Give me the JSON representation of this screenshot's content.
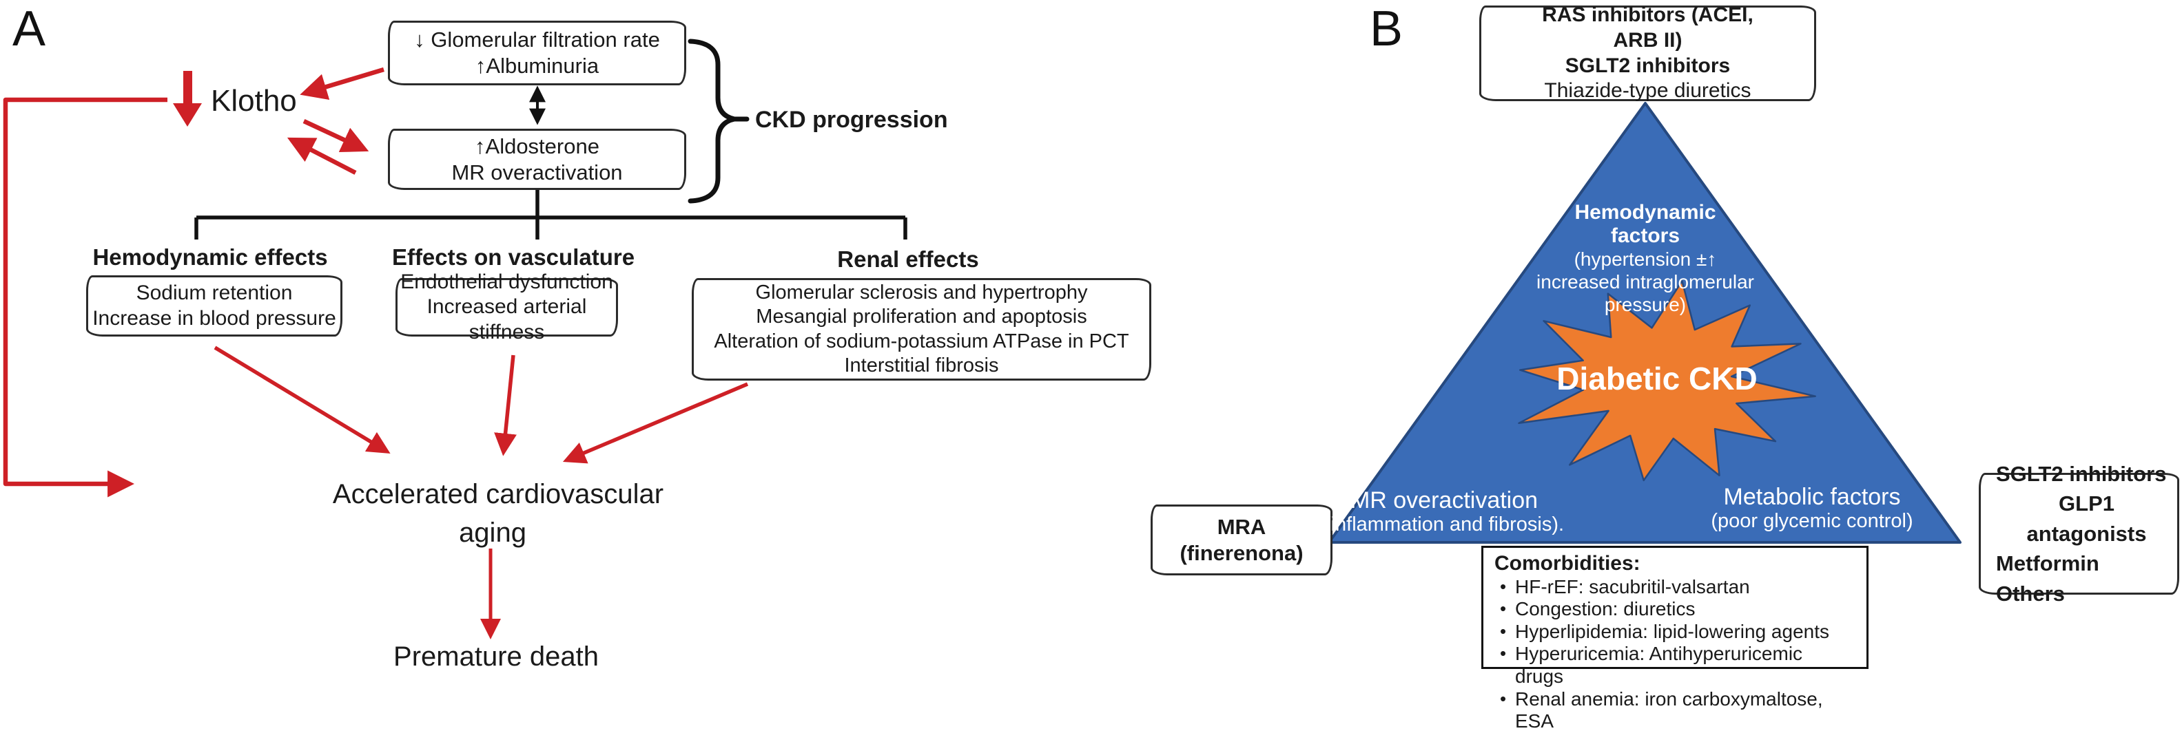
{
  "panelA": {
    "label": "A",
    "gfr_box": {
      "line1": "↓ Glomerular filtration rate",
      "line2": "↑Albuminuria"
    },
    "aldo_box": {
      "line1": "↑Aldosterone",
      "line2": "MR overactivation"
    },
    "ckd_label": "CKD progression",
    "klotho": "Klotho",
    "headings": {
      "hemodynamic": "Hemodynamic effects",
      "vasculature": "Effects on vasculature",
      "renal": "Renal effects"
    },
    "hemo_box": {
      "line1": "Sodium retention",
      "line2": "Increase in blood pressure"
    },
    "vasc_box": {
      "line1": "Endothelial dysfunction",
      "line2": "Increased arterial stiffness"
    },
    "renal_box": {
      "line1": "Glomerular sclerosis and hypertrophy",
      "line2": "Mesangial proliferation and apoptosis",
      "line3": "Alteration of sodium-potassium ATPase in PCT",
      "line4": "Interstitial fibrosis"
    },
    "aging_line1": "Accelerated cardiovascular",
    "aging_line2": "aging",
    "death": "Premature death"
  },
  "panelB": {
    "label": "B",
    "top_box": {
      "line1": "RAS inhibitors (ACEI,",
      "line2": "ARB II)",
      "line3": "SGLT2 inhibitors",
      "line4": "Thiazide-type diuretics"
    },
    "triangle": {
      "hemodynamic": {
        "bold1": "Hemodynamic",
        "bold2": "factors",
        "sub1": "(hypertension ±↑",
        "sub2": "increased intraglomerular",
        "sub3": "pressure)"
      },
      "mr": {
        "main": "MR overactivation",
        "sub": "(inflammation and fibrosis)."
      },
      "metabolic": {
        "main": "Metabolic factors",
        "sub": "(poor glycemic control)"
      }
    },
    "burst_label": "Diabetic CKD",
    "mra_box": {
      "line1": "MRA",
      "line2": "(finerenona)"
    },
    "right_box": {
      "line1": "SGLT2 inhibitors",
      "line2": "GLP1 antagonists",
      "line3": "Metformin",
      "line4": "Others"
    },
    "comorbidities": {
      "title": "Comorbidities:",
      "items": [
        "HF-rEF: sacubritil-valsartan",
        "Congestion: diuretics",
        "Hyperlipidemia: lipid-lowering agents",
        "Hyperuricemia: Antihyperuricemic drugs",
        "Renal anemia: iron carboxymaltose, ESA"
      ]
    }
  },
  "colors": {
    "red": "#ce2026",
    "blue": "#3a6cb7",
    "blue_border": "#26497f",
    "orange": "#ee7c2e",
    "black": "#111111"
  }
}
